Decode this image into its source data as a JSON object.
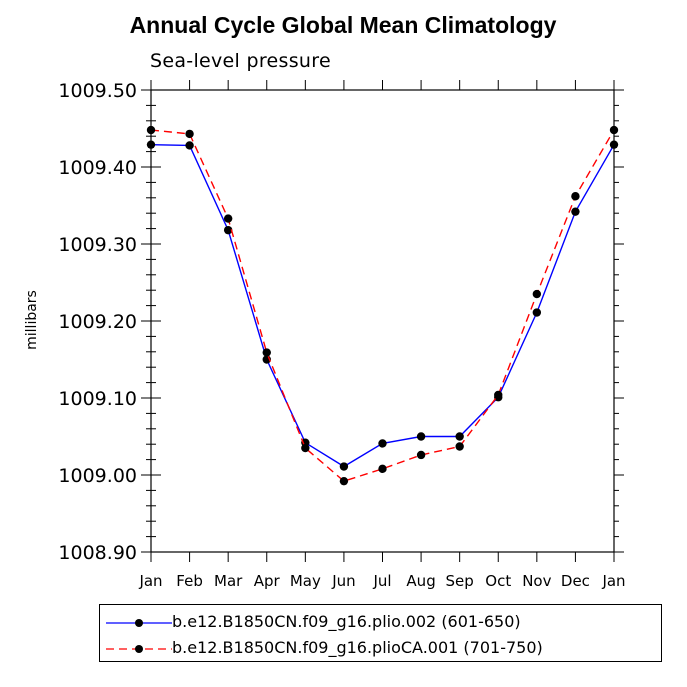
{
  "chart_data": {
    "type": "line",
    "title": "Annual Cycle Global Mean Climatology",
    "subtitle": "Sea-level pressure",
    "ylabel": "millibars",
    "xlabel": "",
    "ylim": [
      1008.9,
      1009.5
    ],
    "yticks": [
      "1009.50",
      "1009.40",
      "1009.30",
      "1009.20",
      "1009.10",
      "1009.00",
      "1008.90"
    ],
    "ytick_values": [
      1009.5,
      1009.4,
      1009.3,
      1009.2,
      1009.1,
      1009.0,
      1008.9
    ],
    "categories": [
      "Jan",
      "Feb",
      "Mar",
      "Apr",
      "May",
      "Jun",
      "Jul",
      "Aug",
      "Sep",
      "Oct",
      "Nov",
      "Dec",
      "Jan"
    ],
    "series": [
      {
        "name": "b.e12.B1850CN.f09_g16.plio.002 (601-650)",
        "color": "#0000ff",
        "dash": "solid",
        "values": [
          1009.429,
          1009.428,
          1009.318,
          1009.15,
          1009.042,
          1009.011,
          1009.041,
          1009.05,
          1009.05,
          1009.101,
          1009.211,
          1009.342,
          1009.429
        ]
      },
      {
        "name": "b.e12.B1850CN.f09_g16.plioCA.001 (701-750)",
        "color": "#ff0000",
        "dash": "dashed",
        "values": [
          1009.448,
          1009.443,
          1009.333,
          1009.159,
          1009.035,
          1008.992,
          1009.008,
          1009.026,
          1009.037,
          1009.104,
          1009.235,
          1009.362,
          1009.448
        ]
      }
    ],
    "grid": false,
    "legend_position": "bottom"
  }
}
